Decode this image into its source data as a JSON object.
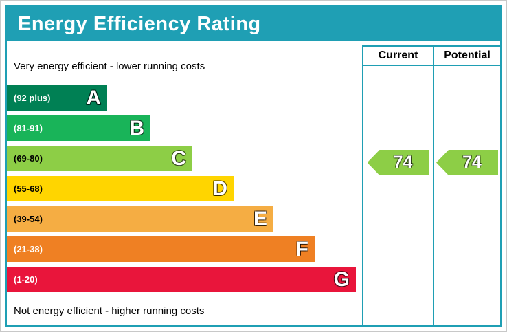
{
  "header": {
    "title": "Energy Efficiency Rating"
  },
  "labels": {
    "top": "Very energy efficient - lower running costs",
    "bottom": "Not energy efficient - higher running costs"
  },
  "columns": {
    "current": "Current",
    "potential": "Potential"
  },
  "colors": {
    "band_header": "#1f9fb4",
    "grid": "#1f9fb4"
  },
  "chart_data": {
    "type": "bar",
    "title": "Energy Efficiency Rating",
    "bands": [
      {
        "letter": "A",
        "range": "(92 plus)",
        "color": "#008054",
        "label_color": "#ffffff"
      },
      {
        "letter": "B",
        "range": "(81-91)",
        "color": "#19b459",
        "label_color": "#ffffff"
      },
      {
        "letter": "C",
        "range": "(69-80)",
        "color": "#8dce46",
        "label_color": "#000000"
      },
      {
        "letter": "D",
        "range": "(55-68)",
        "color": "#ffd500",
        "label_color": "#000000"
      },
      {
        "letter": "E",
        "range": "(39-54)",
        "color": "#f5ad43",
        "label_color": "#000000"
      },
      {
        "letter": "F",
        "range": "(21-38)",
        "color": "#ef8023",
        "label_color": "#ffffff"
      },
      {
        "letter": "G",
        "range": "(1-20)",
        "color": "#e9153b",
        "label_color": "#ffffff"
      }
    ],
    "current": {
      "value": "74",
      "band": "C",
      "color": "#8dce46"
    },
    "potential": {
      "value": "74",
      "band": "C",
      "color": "#8dce46"
    }
  }
}
